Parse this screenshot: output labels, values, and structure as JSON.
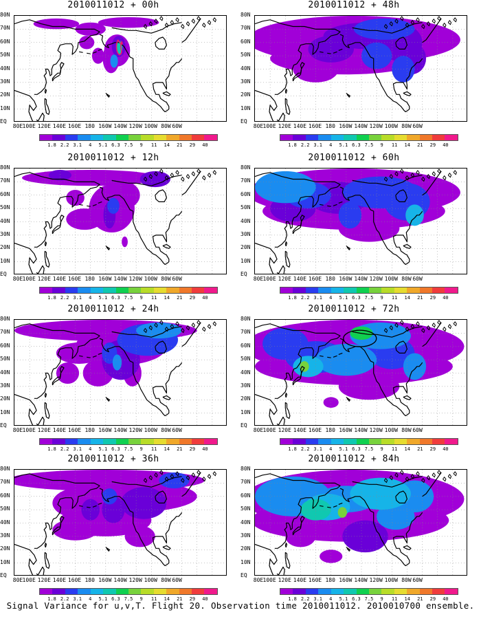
{
  "figure_caption": "Signal Variance for u,v,T. Flight 20. Observation time 2010011012. 2010010700 ensemble.",
  "colorbar_levels": [
    "1.8",
    "2.2",
    "3.1",
    "4",
    "5.1",
    "6.3",
    "7.5",
    "9",
    "11",
    "14",
    "21",
    "29",
    "40"
  ],
  "colorbar_colors": [
    "#a100d8",
    "#6a00d8",
    "#2a3cf0",
    "#1a8cf0",
    "#16b4e8",
    "#10c8b0",
    "#10d050",
    "#78d23c",
    "#b8dc28",
    "#e6dc30",
    "#f0a82a",
    "#f0782a",
    "#f03c3c",
    "#f01a8c"
  ],
  "x_tick_labels": [
    "80E",
    "100E",
    "120E",
    "140E",
    "160E",
    "180",
    "160W",
    "140W",
    "120W",
    "100W",
    "80W",
    "60W"
  ],
  "y_tick_labels": [
    "80N",
    "70N",
    "60N",
    "50N",
    "40N",
    "30N",
    "20N",
    "10N",
    "EQ"
  ],
  "chart_data": [
    {
      "type": "heatmap",
      "title": "2010011012 + 00h",
      "lead_hours": 0,
      "xlim": [
        "80E",
        "60W"
      ],
      "ylim": [
        "EQ",
        "80N"
      ],
      "max_level": "11",
      "annotation": "red contour near 140W 55N"
    },
    {
      "type": "heatmap",
      "title": "2010011012 + 12h",
      "lead_hours": 12,
      "xlim": [
        "80E",
        "60W"
      ],
      "ylim": [
        "EQ",
        "80N"
      ],
      "max_level": "6.3"
    },
    {
      "type": "heatmap",
      "title": "2010011012 + 24h",
      "lead_hours": 24,
      "xlim": [
        "80E",
        "60W"
      ],
      "ylim": [
        "EQ",
        "80N"
      ],
      "max_level": "7.5"
    },
    {
      "type": "heatmap",
      "title": "2010011012 + 36h",
      "lead_hours": 36,
      "xlim": [
        "80E",
        "60W"
      ],
      "ylim": [
        "EQ",
        "80N"
      ],
      "max_level": "7.5"
    },
    {
      "type": "heatmap",
      "title": "2010011012 + 48h",
      "lead_hours": 48,
      "xlim": [
        "80E",
        "60W"
      ],
      "ylim": [
        "EQ",
        "80N"
      ],
      "max_level": "9"
    },
    {
      "type": "heatmap",
      "title": "2010011012 + 60h",
      "lead_hours": 60,
      "xlim": [
        "80E",
        "60W"
      ],
      "ylim": [
        "EQ",
        "80N"
      ],
      "max_level": "9"
    },
    {
      "type": "heatmap",
      "title": "2010011012 + 72h",
      "lead_hours": 72,
      "xlim": [
        "80E",
        "60W"
      ],
      "ylim": [
        "EQ",
        "80N"
      ],
      "max_level": "14",
      "annotation": "black ellipse near 140W 65N"
    },
    {
      "type": "heatmap",
      "title": "2010011012 + 84h",
      "lead_hours": 84,
      "xlim": [
        "80E",
        "60W"
      ],
      "ylim": [
        "EQ",
        "80N"
      ],
      "max_level": "14"
    }
  ]
}
